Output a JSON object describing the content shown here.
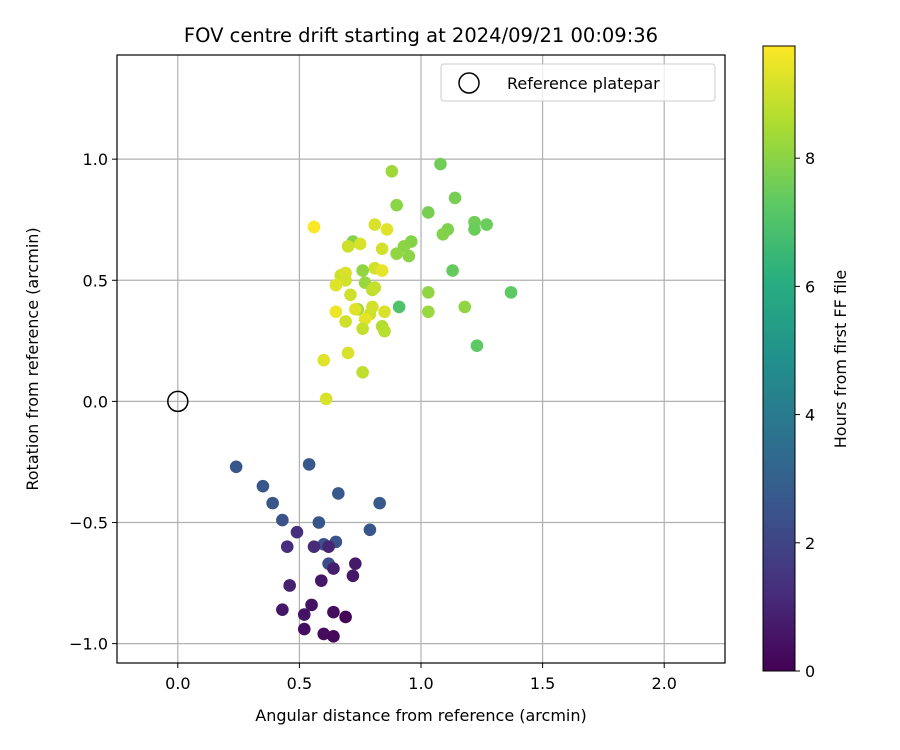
{
  "chart_data": {
    "type": "scatter",
    "title": "FOV centre drift starting at 2024/09/21 00:09:36",
    "xlabel": "Angular distance from reference (arcmin)",
    "ylabel": "Rotation from reference (arcmin)",
    "xlim": [
      -0.25,
      2.25
    ],
    "ylim": [
      -1.08,
      1.43
    ],
    "xticks": [
      0.0,
      0.5,
      1.0,
      1.5,
      2.0
    ],
    "xtick_labels": [
      "0.0",
      "0.5",
      "1.0",
      "1.5",
      "2.0"
    ],
    "yticks": [
      -1.0,
      -0.5,
      0.0,
      0.5,
      1.0
    ],
    "ytick_labels": [
      "−1.0",
      "−0.5",
      "0.0",
      "0.5",
      "1.0"
    ],
    "grid": true,
    "legend": {
      "placement": "top-right",
      "entries": [
        "Reference platepar"
      ]
    },
    "colorbar": {
      "label": "Hours from first FF file",
      "colormap": "viridis",
      "range": [
        0,
        9.75
      ],
      "ticks": [
        0,
        2,
        4,
        6,
        8
      ],
      "tick_labels": [
        "0",
        "2",
        "4",
        "6",
        "8"
      ]
    },
    "reference_point": {
      "x": 0.0,
      "y": 0.0
    },
    "points": [
      {
        "x": 0.24,
        "y": -0.27,
        "c": 2.6
      },
      {
        "x": 0.35,
        "y": -0.35,
        "c": 2.6
      },
      {
        "x": 0.39,
        "y": -0.42,
        "c": 2.6
      },
      {
        "x": 0.43,
        "y": -0.49,
        "c": 2.5
      },
      {
        "x": 0.54,
        "y": -0.26,
        "c": 2.7
      },
      {
        "x": 0.58,
        "y": -0.5,
        "c": 2.6
      },
      {
        "x": 0.66,
        "y": -0.38,
        "c": 2.7
      },
      {
        "x": 0.83,
        "y": -0.42,
        "c": 2.7
      },
      {
        "x": 0.79,
        "y": -0.53,
        "c": 2.6
      },
      {
        "x": 0.6,
        "y": -0.59,
        "c": 2.4
      },
      {
        "x": 0.65,
        "y": -0.58,
        "c": 2.5
      },
      {
        "x": 0.62,
        "y": -0.67,
        "c": 2.3
      },
      {
        "x": 0.45,
        "y": -0.6,
        "c": 1.3
      },
      {
        "x": 0.49,
        "y": -0.54,
        "c": 1.3
      },
      {
        "x": 0.56,
        "y": -0.6,
        "c": 1.2
      },
      {
        "x": 0.62,
        "y": -0.6,
        "c": 1.0
      },
      {
        "x": 0.64,
        "y": -0.69,
        "c": 0.8
      },
      {
        "x": 0.46,
        "y": -0.76,
        "c": 0.9
      },
      {
        "x": 0.59,
        "y": -0.74,
        "c": 0.6
      },
      {
        "x": 0.73,
        "y": -0.67,
        "c": 0.7
      },
      {
        "x": 0.72,
        "y": -0.72,
        "c": 0.6
      },
      {
        "x": 0.43,
        "y": -0.86,
        "c": 0.6
      },
      {
        "x": 0.52,
        "y": -0.88,
        "c": 0.5
      },
      {
        "x": 0.55,
        "y": -0.84,
        "c": 0.5
      },
      {
        "x": 0.52,
        "y": -0.94,
        "c": 0.4
      },
      {
        "x": 0.6,
        "y": -0.96,
        "c": 0.3
      },
      {
        "x": 0.64,
        "y": -0.97,
        "c": 0.2
      },
      {
        "x": 0.64,
        "y": -0.87,
        "c": 0.3
      },
      {
        "x": 0.69,
        "y": -0.89,
        "c": 0.1
      },
      {
        "x": 1.08,
        "y": 0.98,
        "c": 7.6
      },
      {
        "x": 1.14,
        "y": 0.84,
        "c": 7.7
      },
      {
        "x": 1.27,
        "y": 0.73,
        "c": 7.5
      },
      {
        "x": 1.22,
        "y": 0.74,
        "c": 7.6
      },
      {
        "x": 1.22,
        "y": 0.71,
        "c": 7.5
      },
      {
        "x": 1.37,
        "y": 0.45,
        "c": 7.3
      },
      {
        "x": 1.13,
        "y": 0.54,
        "c": 7.4
      },
      {
        "x": 1.23,
        "y": 0.23,
        "c": 7.3
      },
      {
        "x": 0.91,
        "y": 0.39,
        "c": 7.0
      },
      {
        "x": 1.03,
        "y": 0.78,
        "c": 7.7
      },
      {
        "x": 1.11,
        "y": 0.71,
        "c": 7.8
      },
      {
        "x": 1.09,
        "y": 0.69,
        "c": 7.9
      },
      {
        "x": 0.9,
        "y": 0.81,
        "c": 8.0
      },
      {
        "x": 0.88,
        "y": 0.95,
        "c": 8.3
      },
      {
        "x": 0.72,
        "y": 0.66,
        "c": 7.9
      },
      {
        "x": 0.96,
        "y": 0.66,
        "c": 7.9
      },
      {
        "x": 0.93,
        "y": 0.64,
        "c": 8.0
      },
      {
        "x": 0.9,
        "y": 0.61,
        "c": 8.1
      },
      {
        "x": 0.95,
        "y": 0.6,
        "c": 8.0
      },
      {
        "x": 1.03,
        "y": 0.45,
        "c": 8.1
      },
      {
        "x": 1.03,
        "y": 0.37,
        "c": 8.2
      },
      {
        "x": 1.18,
        "y": 0.39,
        "c": 8.1
      },
      {
        "x": 0.76,
        "y": 0.54,
        "c": 8.1
      },
      {
        "x": 0.77,
        "y": 0.49,
        "c": 8.2
      },
      {
        "x": 0.74,
        "y": 0.38,
        "c": 8.3
      },
      {
        "x": 0.76,
        "y": 0.12,
        "c": 8.8
      },
      {
        "x": 0.81,
        "y": 0.73,
        "c": 9.2
      },
      {
        "x": 0.86,
        "y": 0.71,
        "c": 9.3
      },
      {
        "x": 0.84,
        "y": 0.63,
        "c": 9.1
      },
      {
        "x": 0.75,
        "y": 0.65,
        "c": 9.2
      },
      {
        "x": 0.7,
        "y": 0.64,
        "c": 9.0
      },
      {
        "x": 0.56,
        "y": 0.72,
        "c": 9.7
      },
      {
        "x": 0.67,
        "y": 0.52,
        "c": 9.0
      },
      {
        "x": 0.69,
        "y": 0.53,
        "c": 9.2
      },
      {
        "x": 0.69,
        "y": 0.5,
        "c": 9.1
      },
      {
        "x": 0.65,
        "y": 0.48,
        "c": 9.3
      },
      {
        "x": 0.71,
        "y": 0.44,
        "c": 9.0
      },
      {
        "x": 0.81,
        "y": 0.55,
        "c": 9.1
      },
      {
        "x": 0.84,
        "y": 0.54,
        "c": 9.4
      },
      {
        "x": 0.8,
        "y": 0.46,
        "c": 8.8
      },
      {
        "x": 0.81,
        "y": 0.47,
        "c": 8.9
      },
      {
        "x": 0.79,
        "y": 0.36,
        "c": 9.0
      },
      {
        "x": 0.8,
        "y": 0.39,
        "c": 9.1
      },
      {
        "x": 0.85,
        "y": 0.37,
        "c": 9.2
      },
      {
        "x": 0.73,
        "y": 0.38,
        "c": 9.3
      },
      {
        "x": 0.77,
        "y": 0.34,
        "c": 9.4
      },
      {
        "x": 0.69,
        "y": 0.33,
        "c": 9.0
      },
      {
        "x": 0.65,
        "y": 0.37,
        "c": 9.5
      },
      {
        "x": 0.76,
        "y": 0.3,
        "c": 8.9
      },
      {
        "x": 0.84,
        "y": 0.31,
        "c": 8.6
      },
      {
        "x": 0.85,
        "y": 0.29,
        "c": 8.7
      },
      {
        "x": 0.7,
        "y": 0.2,
        "c": 9.2
      },
      {
        "x": 0.6,
        "y": 0.17,
        "c": 9.3
      },
      {
        "x": 0.61,
        "y": 0.01,
        "c": 9.2
      }
    ]
  }
}
